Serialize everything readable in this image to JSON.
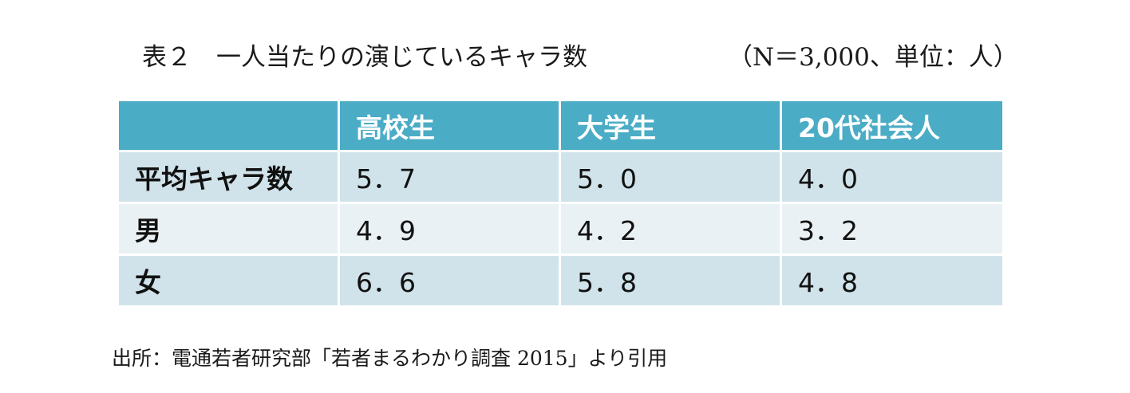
{
  "title": {
    "main": "表２　一人当たりの演じているキャラ数",
    "note": "（N＝3,000、単位：人）"
  },
  "table": {
    "header": [
      "",
      "高校生",
      "大学生",
      "20代社会人"
    ],
    "rows": [
      {
        "label": "平均キャラ数",
        "values": [
          "5．7",
          "5．0",
          "4．0"
        ]
      },
      {
        "label": "男",
        "values": [
          "4．9",
          "4．2",
          "3．2"
        ]
      },
      {
        "label": "女",
        "values": [
          "6．6",
          "5．8",
          "4．8"
        ]
      }
    ]
  },
  "source": "出所：電通若者研究部「若者まるわかり調査 2015」より引用",
  "colors": {
    "header_bg": "#4bacc6",
    "row_odd_bg": "#d0e3ea",
    "row_even_bg": "#e9f1f4"
  }
}
